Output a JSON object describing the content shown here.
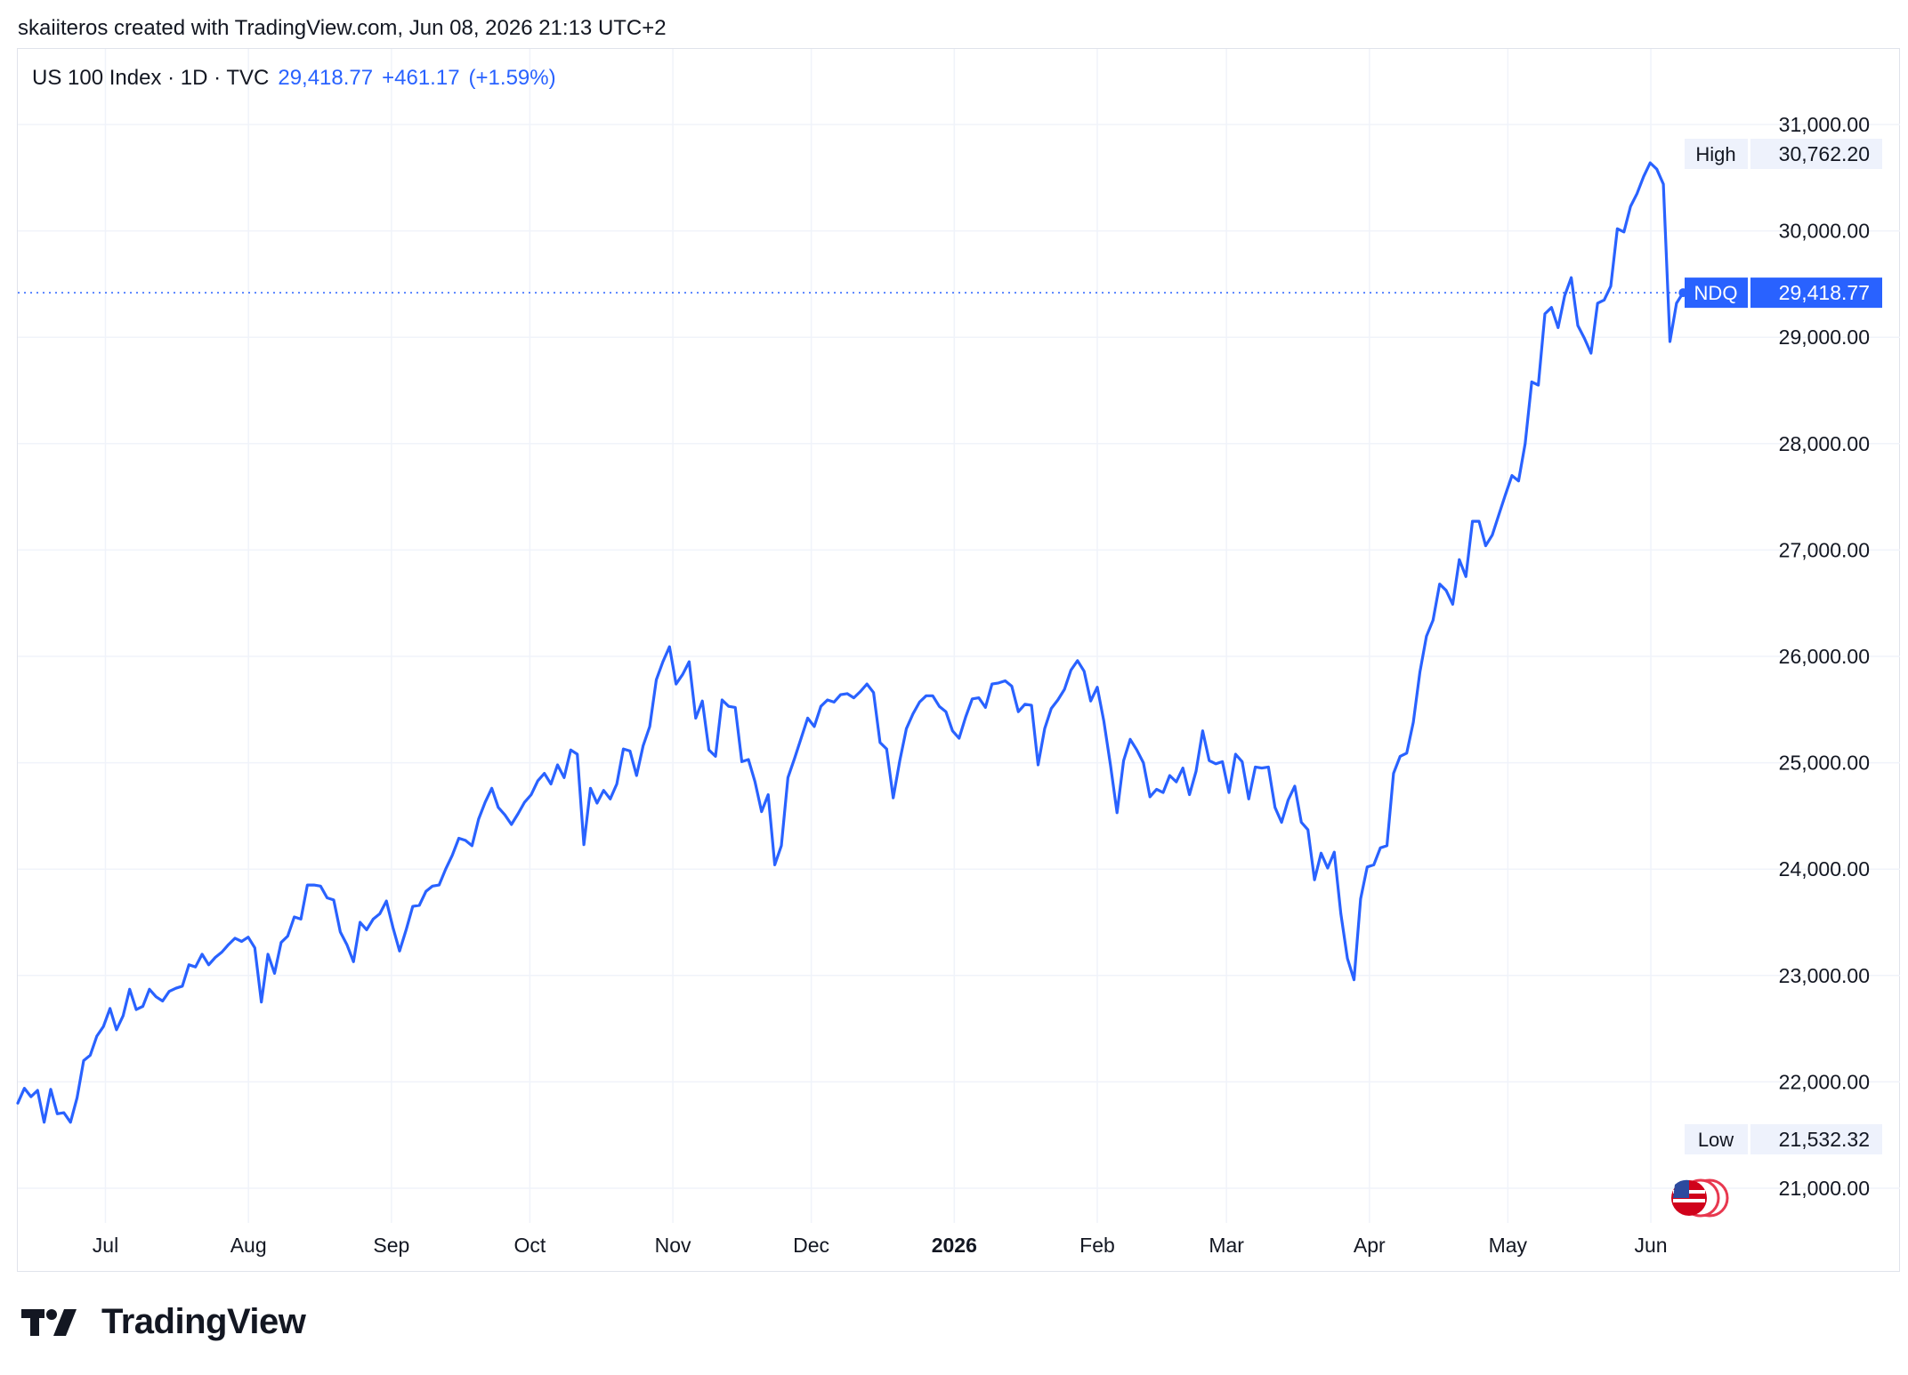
{
  "credit": "skaiiteros created with TradingView.com, Jun 08, 2026 21:13 UTC+2",
  "legend": {
    "symbol": "US 100 Index · 1D · TVC",
    "last": "29,418.77",
    "change": "+461.17",
    "change_pct": "(+1.59%)"
  },
  "brand": {
    "logo_icon": "tradingview-logo-icon",
    "wordmark": "TradingView"
  },
  "colors": {
    "line": "#2962ff",
    "grid": "#f0f3fa",
    "axis_text": "#131722",
    "badge_bg": "#eef2fc"
  },
  "chart_data": {
    "type": "line",
    "title": "",
    "xlabel": "",
    "ylabel": "",
    "ylim": [
      20550,
      31500
    ],
    "yticks": [
      "21,000.00",
      "22,000.00",
      "23,000.00",
      "24,000.00",
      "25,000.00",
      "26,000.00",
      "27,000.00",
      "28,000.00",
      "29,000.00",
      "30,000.00",
      "31,000.00"
    ],
    "ytick_values": [
      21000,
      22000,
      23000,
      24000,
      25000,
      26000,
      27000,
      28000,
      29000,
      30000,
      31000
    ],
    "x_start": "2025-06-12",
    "x_end": "2026-06-08",
    "x_range": [
      "2025-06-12",
      "2026-06-28"
    ],
    "xticks": [
      {
        "label": "Jul",
        "date": "2025-07-01",
        "bold": false
      },
      {
        "label": "Aug",
        "date": "2025-08-01",
        "bold": false
      },
      {
        "label": "Sep",
        "date": "2025-09-01",
        "bold": false
      },
      {
        "label": "Oct",
        "date": "2025-10-01",
        "bold": false
      },
      {
        "label": "Nov",
        "date": "2025-11-01",
        "bold": false
      },
      {
        "label": "Dec",
        "date": "2025-12-01",
        "bold": false
      },
      {
        "label": "2026",
        "date": "2026-01-01",
        "bold": true
      },
      {
        "label": "Feb",
        "date": "2026-02-01",
        "bold": false
      },
      {
        "label": "Mar",
        "date": "2026-03-01",
        "bold": false
      },
      {
        "label": "Apr",
        "date": "2026-04-01",
        "bold": false
      },
      {
        "label": "May",
        "date": "2026-05-01",
        "bold": false
      },
      {
        "label": "Jun",
        "date": "2026-06-01",
        "bold": false
      }
    ],
    "series": [
      {
        "values": [
          21800,
          21940,
          21860,
          21920,
          21620,
          21930,
          21700,
          21710,
          21620,
          21850,
          22200,
          22250,
          22430,
          22520,
          22690,
          22490,
          22620,
          22870,
          22680,
          22710,
          22870,
          22800,
          22760,
          22850,
          22880,
          22900,
          23100,
          23080,
          23200,
          23100,
          23170,
          23220,
          23290,
          23350,
          23320,
          23360,
          23260,
          22750,
          23200,
          23020,
          23310,
          23370,
          23550,
          23530,
          23850,
          23850,
          23840,
          23730,
          23710,
          23410,
          23290,
          23130,
          23500,
          23430,
          23530,
          23580,
          23700,
          23450,
          23230,
          23430,
          23650,
          23660,
          23790,
          23840,
          23850,
          24000,
          24130,
          24290,
          24270,
          24220,
          24470,
          24630,
          24760,
          24580,
          24510,
          24420,
          24520,
          24630,
          24700,
          24830,
          24900,
          24800,
          24980,
          24860,
          25120,
          25080,
          24230,
          24760,
          24620,
          24740,
          24660,
          24800,
          25130,
          25110,
          24880,
          25160,
          25340,
          25780,
          25950,
          26090,
          25740,
          25830,
          25950,
          25420,
          25580,
          25120,
          25060,
          25590,
          25530,
          25520,
          25010,
          25030,
          24820,
          24540,
          24700,
          24040,
          24220,
          24860,
          25040,
          25230,
          25420,
          25340,
          25530,
          25590,
          25570,
          25640,
          25650,
          25610,
          25670,
          25740,
          25660,
          25190,
          25130,
          24670,
          25020,
          25320,
          25460,
          25570,
          25630,
          25630,
          25530,
          25480,
          25300,
          25230,
          25430,
          25600,
          25610,
          25520,
          25740,
          25750,
          25770,
          25720,
          25480,
          25550,
          25540,
          24980,
          25320,
          25510,
          25590,
          25690,
          25870,
          25960,
          25860,
          25580,
          25710,
          25390,
          24980,
          24530,
          25020,
          25220,
          25120,
          25000,
          24680,
          24750,
          24720,
          24880,
          24820,
          24950,
          24700,
          24920,
          25300,
          25020,
          24990,
          25010,
          24720,
          25080,
          25010,
          24660,
          24960,
          24950,
          24960,
          24580,
          24440,
          24650,
          24780,
          24440,
          24370,
          23900,
          24150,
          24010,
          24160,
          23580,
          23160,
          22960,
          23720,
          24020,
          24040,
          24200,
          24220,
          24900,
          25060,
          25090,
          25380,
          25850,
          26190,
          26340,
          26680,
          26620,
          26490,
          26910,
          26750,
          27270,
          27270,
          27040,
          27140,
          27330,
          27520,
          27700,
          27650,
          28000,
          28580,
          28550,
          29220,
          29280,
          29090,
          29390,
          29560,
          29110,
          28990,
          28850,
          29320,
          29350,
          29480,
          30020,
          29990,
          30230,
          30350,
          30510,
          30640,
          30580,
          30440,
          28960,
          29320,
          29418.77
        ]
      }
    ],
    "last_value": 29418.77,
    "last_label": "NDQ",
    "last_value_label": "29,418.77",
    "high": {
      "label": "High",
      "value": 30762.2,
      "value_label": "30,762.20"
    },
    "low": {
      "label": "Low",
      "value": 21532.32,
      "value_label": "21,532.32"
    },
    "grid": true,
    "legend": "top-left"
  }
}
